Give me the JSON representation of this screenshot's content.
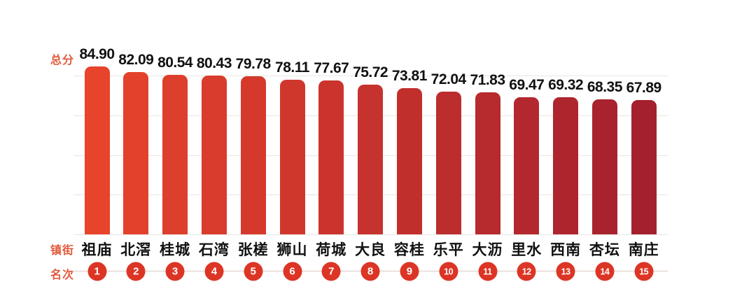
{
  "chart_data": {
    "type": "bar",
    "score_axis_label": "总分",
    "category_axis_label": "镇街",
    "rank_axis_label": "名次",
    "categories": [
      "祖庙",
      "北滘",
      "桂城",
      "石湾",
      "张槎",
      "狮山",
      "荷城",
      "大良",
      "容桂",
      "乐平",
      "大沥",
      "里水",
      "西南",
      "杏坛",
      "南庄"
    ],
    "values": [
      84.9,
      82.09,
      80.54,
      80.43,
      79.78,
      78.11,
      77.67,
      75.72,
      73.81,
      72.04,
      71.83,
      69.47,
      69.32,
      68.35,
      67.89
    ],
    "value_labels": [
      "84.90",
      "82.09",
      "80.54",
      "80.43",
      "79.78",
      "78.11",
      "77.67",
      "75.72",
      "73.81",
      "72.04",
      "71.83",
      "69.47",
      "69.32",
      "68.35",
      "67.89"
    ],
    "ranks": [
      "1",
      "2",
      "3",
      "4",
      "5",
      "6",
      "7",
      "8",
      "9",
      "10",
      "11",
      "12",
      "13",
      "14",
      "15"
    ],
    "ylim": [
      0,
      84.9
    ],
    "grid": true,
    "legend": "none",
    "colors": {
      "bar_first": "#E8432B",
      "bar_last": "#A4202F",
      "rank_circle": "#DC3525",
      "axis_label_text": "#E05A3C",
      "value_text": "#111111",
      "category_text": "#111111",
      "gridline": "#E9E6E4",
      "rank_connector": "#D9C8C2",
      "background": "#FFFFFF"
    }
  }
}
